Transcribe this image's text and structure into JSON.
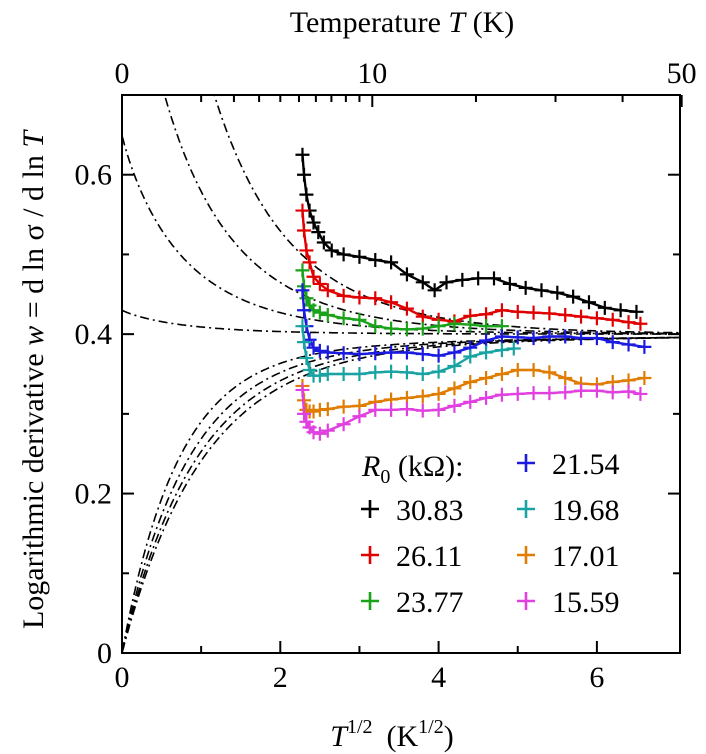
{
  "chart_data": {
    "type": "scatter",
    "x_axis": {
      "label_T": "T",
      "label_exp": "1/2",
      "label_unit_open": "(K",
      "label_unit_exp": "1/2",
      "label_unit_close": ")",
      "range": [
        0,
        7.05
      ],
      "ticks": [
        0,
        2,
        4,
        6
      ],
      "tick_labels": [
        "0",
        "2",
        "4",
        "6"
      ]
    },
    "top_axis": {
      "label_prefix": "Temperature ",
      "label_T": "T",
      "label_suffix": " (K)",
      "ticks": [
        0,
        10,
        50
      ],
      "tick_labels": [
        "0",
        "10",
        "50"
      ],
      "minor_ticks": [
        1,
        2,
        3,
        4,
        5,
        6,
        7,
        8,
        9,
        20,
        30,
        40
      ]
    },
    "y_axis": {
      "label_parts": [
        "Logarithmic derivative   ",
        "w",
        " = d ln σ  / d ln ",
        "T"
      ],
      "range": [
        0,
        0.7
      ],
      "ticks": [
        0,
        0.2,
        0.4,
        0.6
      ],
      "tick_labels": [
        "0",
        "0.2",
        "0.4",
        "0.6"
      ]
    },
    "legend": {
      "title_R": "R",
      "title_sub": "0",
      "title_unit": " (kΩ):",
      "placement": "bottom-right"
    },
    "series": [
      {
        "name": "30.83",
        "color": "#000000",
        "x": [
          2.28,
          2.3,
          2.33,
          2.37,
          2.42,
          2.48,
          2.55,
          2.65,
          2.8,
          3.0,
          3.2,
          3.4,
          3.6,
          3.8,
          3.95,
          4.1,
          4.3,
          4.5,
          4.7,
          4.9,
          5.1,
          5.3,
          5.5,
          5.7,
          5.9,
          6.1,
          6.3,
          6.5
        ],
        "y": [
          0.625,
          0.6,
          0.575,
          0.555,
          0.54,
          0.528,
          0.515,
          0.505,
          0.5,
          0.497,
          0.493,
          0.49,
          0.475,
          0.465,
          0.455,
          0.465,
          0.468,
          0.47,
          0.47,
          0.463,
          0.458,
          0.455,
          0.452,
          0.447,
          0.44,
          0.433,
          0.43,
          0.428
        ]
      },
      {
        "name": "26.11",
        "color": "#e00000",
        "x": [
          2.28,
          2.3,
          2.33,
          2.37,
          2.42,
          2.5,
          2.6,
          2.8,
          3.0,
          3.2,
          3.4,
          3.6,
          3.8,
          4.0,
          4.2,
          4.4,
          4.6,
          4.8,
          5.0,
          5.2,
          5.4,
          5.6,
          5.8,
          6.0,
          6.2,
          6.4,
          6.55
        ],
        "y": [
          0.555,
          0.53,
          0.505,
          0.49,
          0.472,
          0.463,
          0.455,
          0.448,
          0.446,
          0.445,
          0.44,
          0.432,
          0.422,
          0.418,
          0.416,
          0.423,
          0.425,
          0.43,
          0.428,
          0.427,
          0.426,
          0.424,
          0.422,
          0.42,
          0.418,
          0.415,
          0.413
        ]
      },
      {
        "name": "23.77",
        "color": "#1aa31a",
        "x": [
          2.28,
          2.3,
          2.33,
          2.37,
          2.42,
          2.5,
          2.6,
          2.8,
          3.0,
          3.2,
          3.4,
          3.6,
          3.8,
          4.0,
          4.2,
          4.4,
          4.6,
          4.8
        ],
        "y": [
          0.48,
          0.46,
          0.445,
          0.436,
          0.43,
          0.427,
          0.424,
          0.42,
          0.418,
          0.41,
          0.407,
          0.406,
          0.407,
          0.41,
          0.413,
          0.412,
          0.41,
          0.41
        ]
      },
      {
        "name": "21.54",
        "color": "#1a1ae0",
        "x": [
          2.28,
          2.3,
          2.33,
          2.37,
          2.42,
          2.5,
          2.6,
          2.8,
          3.0,
          3.2,
          3.4,
          3.6,
          3.8,
          4.0,
          4.2,
          4.4,
          4.6,
          4.8,
          5.0,
          5.2,
          5.4,
          5.6,
          5.8,
          6.0,
          6.2,
          6.4,
          6.6
        ],
        "y": [
          0.455,
          0.43,
          0.41,
          0.393,
          0.383,
          0.379,
          0.377,
          0.376,
          0.375,
          0.376,
          0.377,
          0.377,
          0.375,
          0.373,
          0.377,
          0.383,
          0.392,
          0.397,
          0.396,
          0.395,
          0.397,
          0.397,
          0.395,
          0.395,
          0.39,
          0.387,
          0.384
        ]
      },
      {
        "name": "19.68",
        "color": "#1aa3a3",
        "x": [
          2.28,
          2.3,
          2.33,
          2.37,
          2.42,
          2.5,
          2.6,
          2.8,
          3.0,
          3.2,
          3.4,
          3.6,
          3.8,
          4.0,
          4.2,
          4.4,
          4.6,
          4.8,
          4.95
        ],
        "y": [
          0.41,
          0.39,
          0.37,
          0.355,
          0.348,
          0.348,
          0.35,
          0.35,
          0.35,
          0.352,
          0.353,
          0.352,
          0.35,
          0.353,
          0.36,
          0.372,
          0.377,
          0.38,
          0.382
        ]
      },
      {
        "name": "17.01",
        "color": "#e07c00",
        "x": [
          2.28,
          2.3,
          2.33,
          2.37,
          2.42,
          2.5,
          2.6,
          2.8,
          3.0,
          3.2,
          3.4,
          3.6,
          3.8,
          4.0,
          4.2,
          4.4,
          4.6,
          4.8,
          5.0,
          5.2,
          5.4,
          5.6,
          5.8,
          6.0,
          6.2,
          6.4,
          6.6
        ],
        "y": [
          0.335,
          0.317,
          0.305,
          0.303,
          0.303,
          0.305,
          0.306,
          0.309,
          0.31,
          0.315,
          0.318,
          0.32,
          0.322,
          0.325,
          0.332,
          0.34,
          0.345,
          0.35,
          0.355,
          0.355,
          0.352,
          0.345,
          0.338,
          0.337,
          0.34,
          0.342,
          0.345
        ]
      },
      {
        "name": "15.59",
        "color": "#e040e0",
        "x": [
          2.28,
          2.3,
          2.33,
          2.37,
          2.42,
          2.5,
          2.6,
          2.8,
          3.0,
          3.2,
          3.4,
          3.6,
          3.8,
          4.0,
          4.2,
          4.4,
          4.6,
          4.8,
          5.0,
          5.2,
          5.4,
          5.6,
          5.8,
          6.0,
          6.2,
          6.4,
          6.55
        ],
        "y": [
          0.33,
          0.3,
          0.29,
          0.283,
          0.277,
          0.275,
          0.279,
          0.287,
          0.297,
          0.305,
          0.305,
          0.306,
          0.304,
          0.305,
          0.31,
          0.315,
          0.32,
          0.324,
          0.325,
          0.326,
          0.326,
          0.327,
          0.329,
          0.329,
          0.327,
          0.328,
          0.325
        ]
      }
    ],
    "reference_curves": [
      {
        "w_inf": 0.4,
        "a": 1.2
      },
      {
        "w_inf": 0.4,
        "a": 0.6
      },
      {
        "w_inf": 0.4,
        "a": 0.25
      },
      {
        "w_inf": 0.4,
        "a": 0.03
      },
      {
        "w_inf": 0.4,
        "a": -0.2
      },
      {
        "w_inf": 0.4,
        "a": -0.32
      },
      {
        "w_inf": 0.4,
        "a": -0.42
      },
      {
        "w_inf": 0.4,
        "a": -0.5
      }
    ]
  }
}
